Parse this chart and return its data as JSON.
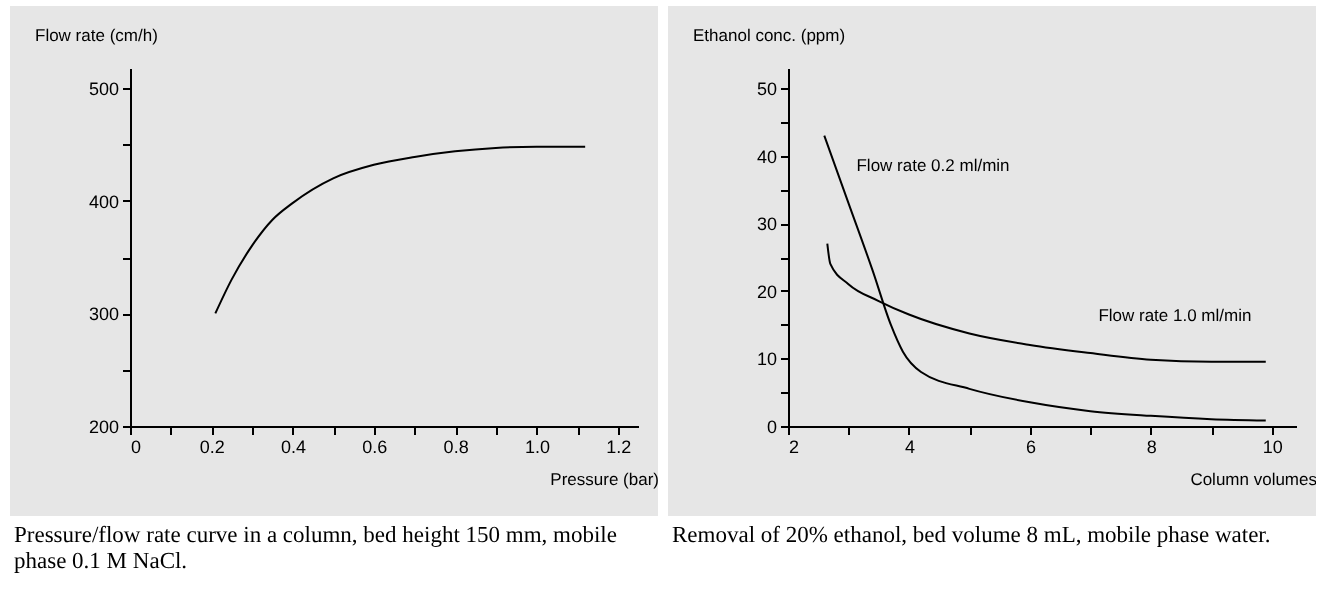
{
  "chart_data": [
    {
      "type": "line",
      "xlabel": "Pressure (bar)",
      "ylabel": "Flow rate (cm/h)",
      "xlim": [
        0,
        1.25
      ],
      "ylim": [
        200,
        518
      ],
      "xticks": [
        0,
        {
          "value": 0.1,
          "label": null
        },
        0.2,
        {
          "value": 0.3,
          "label": null
        },
        0.4,
        {
          "value": 0.5,
          "label": null
        },
        0.6,
        {
          "value": 0.7,
          "label": null
        },
        0.8,
        {
          "value": 0.9,
          "label": null
        },
        {
          "value": 1,
          "label": "1.0"
        },
        {
          "value": 1.1,
          "label": null
        },
        1.2
      ],
      "yticks": [
        200,
        {
          "value": 250,
          "label": null
        },
        300,
        {
          "value": 350,
          "label": null
        },
        400,
        {
          "value": 450,
          "label": null
        },
        500
      ],
      "series": [
        {
          "color": "#000000",
          "x": [
            0.21,
            0.25,
            0.3,
            0.35,
            0.4,
            0.5,
            0.6,
            0.7,
            0.8,
            0.9,
            1.0,
            1.12
          ],
          "values": [
            300,
            330,
            360,
            383,
            398,
            420,
            432,
            439,
            444,
            447,
            448,
            448
          ]
        }
      ],
      "legend": false,
      "grid": false,
      "annotations": [
        "Pressure/flow rate curve in a column, bed height 150 mm, mobile phase 0.1 M NaCl."
      ]
    },
    {
      "type": "line",
      "xlabel": "Column volumes",
      "ylabel": "Ethanol conc. (ppm)",
      "xlim": [
        2,
        10.4
      ],
      "ylim": [
        0,
        53
      ],
      "xticks": [
        2,
        {
          "value": 3,
          "label": null
        },
        4,
        {
          "value": 5,
          "label": null
        },
        6,
        {
          "value": 7,
          "label": null
        },
        8,
        {
          "value": 9,
          "label": null
        },
        10
      ],
      "yticks": [
        0,
        {
          "value": 5,
          "label": null
        },
        10,
        {
          "value": 15,
          "label": null
        },
        20,
        {
          "value": 25,
          "label": null
        },
        30,
        {
          "value": 35,
          "label": null
        },
        40,
        {
          "value": 45,
          "label": null
        },
        50
      ],
      "series": [
        {
          "name": "Flow rate 0.2 ml/min",
          "color": "#000000",
          "x": [
            2.6,
            3,
            3.4,
            3.7,
            3.9,
            4.2,
            5,
            6,
            7,
            8,
            9,
            9.9
          ],
          "values": [
            43,
            33,
            23,
            15,
            11,
            8,
            5.5,
            3.5,
            2.2,
            1.5,
            1,
            0.8
          ]
        },
        {
          "name": "Flow rate 1.0 ml/min",
          "color": "#000000",
          "x": [
            2.65,
            2.7,
            3,
            3.5,
            4,
            5,
            6,
            7,
            8,
            9,
            9.9
          ],
          "values": [
            27,
            24,
            21,
            18.5,
            16.5,
            13.7,
            12,
            10.8,
            9.8,
            9.5,
            9.5
          ]
        }
      ],
      "legend": false,
      "grid": false,
      "annotations": [
        "Removal of 20% ethanol, bed volume 8 mL, mobile phase water."
      ]
    }
  ]
}
